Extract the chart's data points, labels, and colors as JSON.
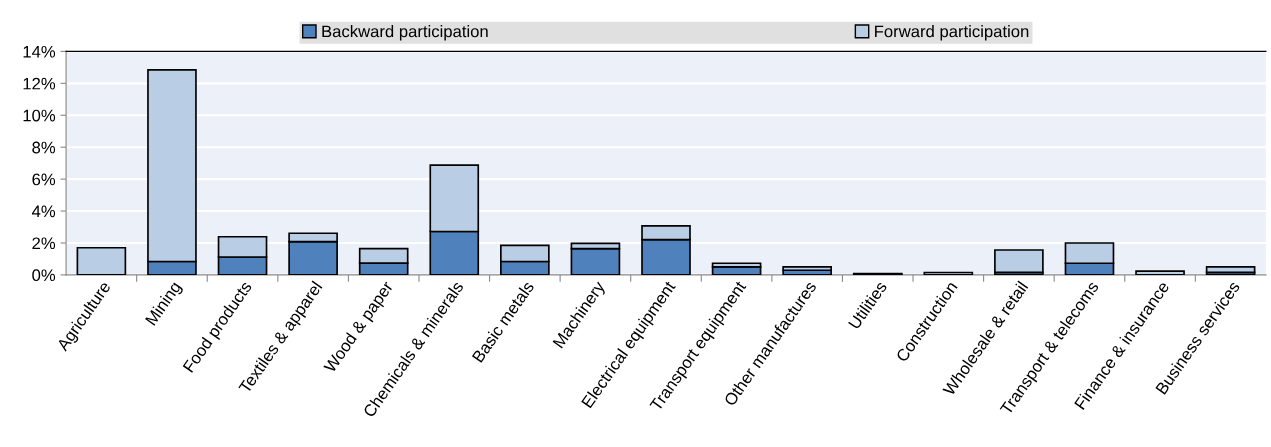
{
  "chart_data": {
    "type": "bar",
    "stacked": true,
    "categories": [
      "Agriculture",
      "Mining",
      "Food products",
      "Textiles & apparel",
      "Wood & paper",
      "Chemicals & minerals",
      "Basic metals",
      "Machinery",
      "Electrical equipment",
      "Transport equipment",
      "Other manufactures",
      "Utilities",
      "Construction",
      "Wholesale & retail",
      "Transport & telecoms",
      "Finance & insurance",
      "Business services"
    ],
    "series": [
      {
        "name": "Backward participation",
        "color": "#4f81bd",
        "values": [
          null,
          0.84,
          1.12,
          2.08,
          0.74,
          2.72,
          0.84,
          1.65,
          2.21,
          0.5,
          0.29,
          0.03,
          null,
          0.16,
          0.73,
          null,
          0.16
        ]
      },
      {
        "name": "Forward participation",
        "color": "#b9cde5",
        "values": [
          1.7,
          12.0,
          1.27,
          0.53,
          0.91,
          4.16,
          1.01,
          0.33,
          0.86,
          0.23,
          0.21,
          0.05,
          0.15,
          1.4,
          1.27,
          0.24,
          0.34
        ]
      }
    ],
    "ylim": [
      0,
      14
    ],
    "yticks": [
      {
        "value": 0,
        "label": "0%"
      },
      {
        "value": 2,
        "label": "2%"
      },
      {
        "value": 4,
        "label": "4%"
      },
      {
        "value": 6,
        "label": "6%"
      },
      {
        "value": 8,
        "label": "8%"
      },
      {
        "value": 10,
        "label": "10%"
      },
      {
        "value": 12,
        "label": "12%"
      },
      {
        "value": 14,
        "label": "14%"
      }
    ],
    "grid": "y",
    "legend": "top"
  }
}
